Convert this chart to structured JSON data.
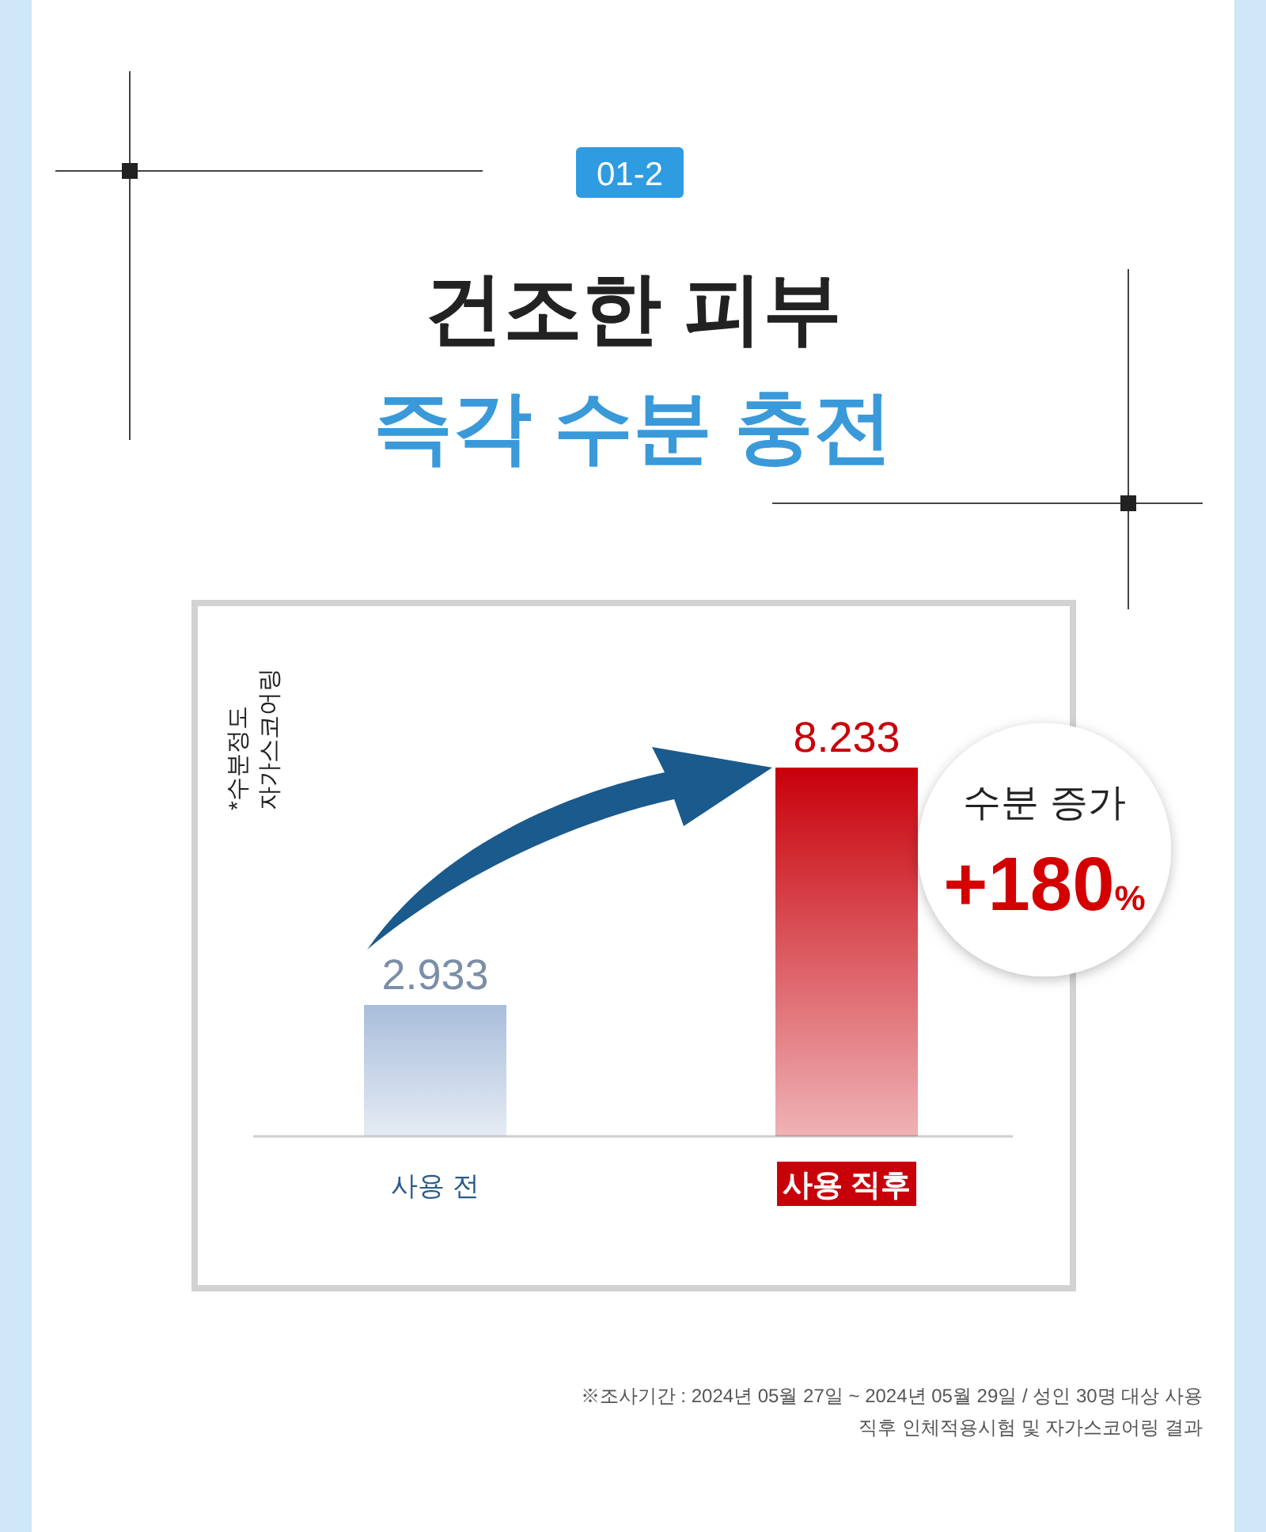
{
  "chart_data": {
    "type": "bar",
    "title": "건조한 피부",
    "subtitle": "즉각 수분 충전",
    "categories": [
      "사용 전",
      "사용 직후"
    ],
    "values": [
      2.933,
      8.233
    ],
    "colors": [
      "#a9bedb",
      "#c8000a"
    ],
    "data_labels": true,
    "annotations": [
      "*수분정도 자가스코어링",
      "01-2",
      "수분 증가",
      "+180%",
      "※조사기간 : 2024년 05월 27일 ~ 2024년 05월 29일 / 성인 30명 대상 사용직후 인체적용시험 및 자가스코어링 결과"
    ]
  }
}
